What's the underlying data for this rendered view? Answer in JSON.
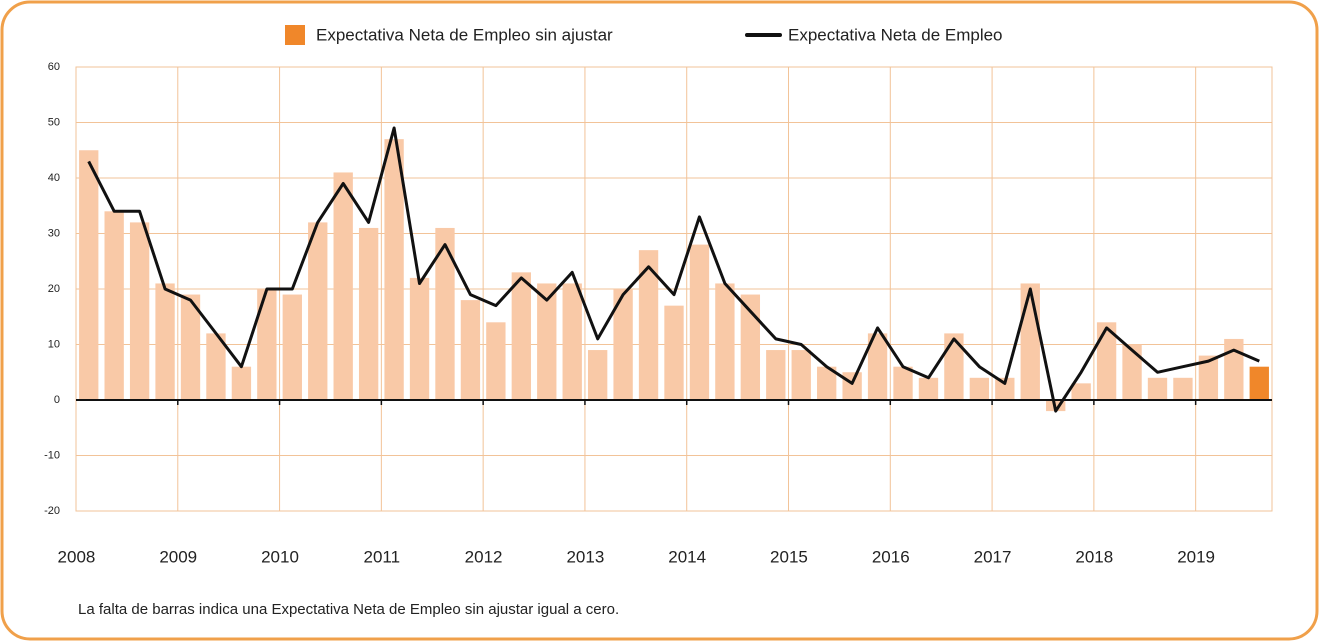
{
  "chart_data": {
    "type": "bar_line",
    "categories": [
      "2008",
      null,
      null,
      null,
      "2009",
      null,
      null,
      null,
      "2010",
      null,
      null,
      null,
      "2011",
      null,
      null,
      null,
      "2012",
      null,
      null,
      null,
      "2013",
      null,
      null,
      null,
      "2014",
      null,
      null,
      null,
      "2015",
      null,
      null,
      null,
      "2016",
      null,
      null,
      null,
      "2017",
      null,
      null,
      null,
      "2018",
      null,
      null,
      null,
      "2019",
      null,
      null
    ],
    "series": [
      {
        "name": "Expectativa Neta de Empleo sin ajustar",
        "type": "bar",
        "color": "#f0872a",
        "bar_colors": [
          "#f9c9a7",
          "#f9c9a7",
          "#f9c9a7",
          "#f9c9a7",
          "#f9c9a7",
          "#f9c9a7",
          "#f9c9a7",
          "#f9c9a7",
          "#f9c9a7",
          "#f9c9a7",
          "#f9c9a7",
          "#f9c9a7",
          "#f9c9a7",
          "#f9c9a7",
          "#f9c9a7",
          "#f9c9a7",
          "#f9c9a7",
          "#f9c9a7",
          "#f9c9a7",
          "#f9c9a7",
          "#f9c9a7",
          "#f9c9a7",
          "#f9c9a7",
          "#f9c9a7",
          "#f9c9a7",
          "#f9c9a7",
          "#f9c9a7",
          "#f9c9a7",
          "#f9c9a7",
          "#f9c9a7",
          "#f9c9a7",
          "#f9c9a7",
          "#f9c9a7",
          "#f9c9a7",
          "#f9c9a7",
          "#f9c9a7",
          "#f9c9a7",
          "#f9c9a7",
          "#f9c9a7",
          "#f9c9a7",
          "#f9c9a7",
          "#f9c9a7",
          "#f9c9a7",
          "#f9c9a7",
          "#f9c9a7",
          "#f9c9a7",
          "#f0872a"
        ],
        "values": [
          45,
          34,
          32,
          21,
          19,
          12,
          6,
          20,
          19,
          32,
          41,
          31,
          47,
          22,
          31,
          18,
          14,
          23,
          21,
          21,
          9,
          20,
          27,
          17,
          28,
          21,
          19,
          9,
          9,
          6,
          5,
          12,
          6,
          4,
          12,
          4,
          4,
          21,
          -2,
          3,
          14,
          10,
          4,
          4,
          8,
          11,
          6
        ]
      },
      {
        "name": "Expectativa Neta de Empleo",
        "type": "line",
        "color": "#111111",
        "values": [
          43,
          34,
          34,
          20,
          18,
          12,
          6,
          20,
          20,
          32,
          39,
          32,
          49,
          21,
          28,
          19,
          17,
          22,
          18,
          23,
          11,
          19,
          24,
          19,
          33,
          21,
          16,
          11,
          10,
          6,
          3,
          13,
          6,
          4,
          11,
          6,
          3,
          20,
          -2,
          5,
          13,
          9,
          5,
          6,
          7,
          9,
          7
        ]
      }
    ],
    "ylim": [
      -20,
      60
    ],
    "yticks": [
      -20,
      -10,
      0,
      10,
      20,
      30,
      40,
      50,
      60
    ],
    "grid": true,
    "legend": "top",
    "note": "La falta de barras indica una Expectativa Neta de Empleo sin ajustar igual a cero."
  }
}
